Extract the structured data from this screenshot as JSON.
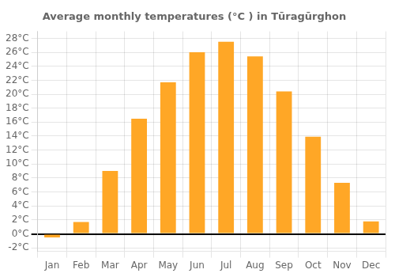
{
  "chart_data": {
    "type": "bar",
    "title": "Average monthly temperatures (°C ) in Tūragūrghon",
    "categories": [
      "Jan",
      "Feb",
      "Mar",
      "Apr",
      "May",
      "Jun",
      "Jul",
      "Aug",
      "Sep",
      "Oct",
      "Nov",
      "Dec"
    ],
    "values": [
      -0.5,
      1.7,
      9.0,
      16.5,
      21.7,
      26.0,
      27.5,
      25.4,
      20.4,
      13.9,
      7.3,
      1.8
    ],
    "color": "#FFA726",
    "ylim": [
      -2.5,
      29
    ],
    "yticks": [
      {
        "value": -2,
        "label": "-2°C"
      },
      {
        "value": 0,
        "label": "0°C"
      },
      {
        "value": 2,
        "label": "2°C"
      },
      {
        "value": 4,
        "label": "4°C"
      },
      {
        "value": 6,
        "label": "6°C"
      },
      {
        "value": 8,
        "label": "8°C"
      },
      {
        "value": 10,
        "label": "10°C"
      },
      {
        "value": 12,
        "label": "12°C"
      },
      {
        "value": 14,
        "label": "14°C"
      },
      {
        "value": 16,
        "label": "16°C"
      },
      {
        "value": 18,
        "label": "18°C"
      },
      {
        "value": 20,
        "label": "20°C"
      },
      {
        "value": 22,
        "label": "22°C"
      },
      {
        "value": 24,
        "label": "24°C"
      },
      {
        "value": 26,
        "label": "26°C"
      },
      {
        "value": 28,
        "label": "28°C"
      }
    ],
    "grid": true
  }
}
